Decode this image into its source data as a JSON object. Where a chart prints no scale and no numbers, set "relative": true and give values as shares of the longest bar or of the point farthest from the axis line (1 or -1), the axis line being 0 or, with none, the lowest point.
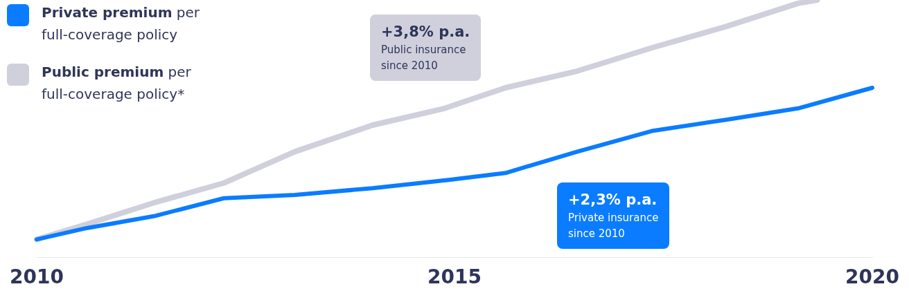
{
  "chart_data": {
    "type": "line",
    "relative": true,
    "xlim": [
      2010,
      2020
    ],
    "xticks": [
      2010,
      2015,
      2020
    ],
    "legend": "top left",
    "grid": false,
    "marker": "none",
    "line_style": "solid",
    "series": [
      {
        "name": "Private premium per full-coverage policy",
        "color": "#0a7cff",
        "x": [
          2010,
          2010.6,
          2011.4,
          2012.24,
          2013.09,
          2014.02,
          2014.95,
          2015.61,
          2016.47,
          2017.36,
          2018.25,
          2019.11,
          2020
        ],
        "values": [
          0.07,
          0.114,
          0.16,
          0.23,
          0.243,
          0.269,
          0.302,
          0.328,
          0.411,
          0.491,
          0.535,
          0.579,
          0.659
        ]
      },
      {
        "name": "Public premium per full-coverage policy*",
        "color": "#cfd0dc",
        "x": [
          2010,
          2010.6,
          2011.4,
          2012.24,
          2013.09,
          2014.02,
          2014.88,
          2015.61,
          2016.47,
          2017.36,
          2018.25,
          2019.11,
          2019.34
        ],
        "values": [
          0.07,
          0.129,
          0.212,
          0.289,
          0.411,
          0.514,
          0.579,
          0.659,
          0.724,
          0.814,
          0.897,
          0.987,
          1.0
        ]
      }
    ],
    "annotations": [
      "+3,8% p.a.\nPublic insurance\nsince 2010",
      "+2,3% p.a.\nPrivate insurance\nsince 2010"
    ]
  }
}
